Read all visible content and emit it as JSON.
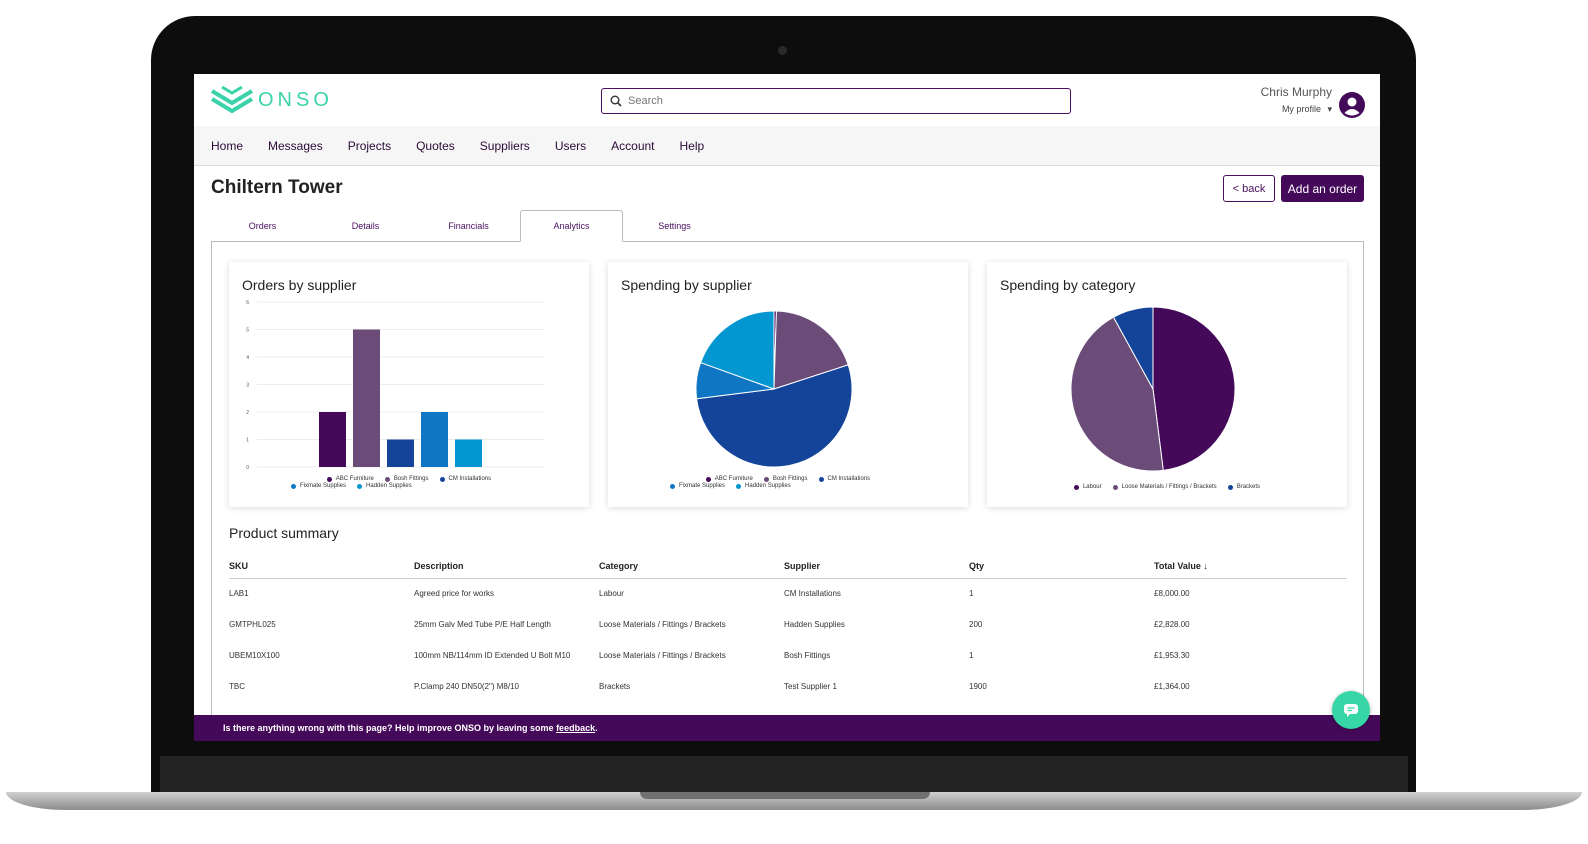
{
  "app": {
    "logo_text": "ONSO",
    "brand_color": "#3ad3a9",
    "primary_color": "#45095a"
  },
  "search": {
    "placeholder": "Search"
  },
  "user": {
    "name": "Chris Murphy",
    "profile_label": "My profile"
  },
  "nav": {
    "items": [
      "Home",
      "Messages",
      "Projects",
      "Quotes",
      "Suppliers",
      "Users",
      "Account",
      "Help"
    ]
  },
  "page": {
    "title": "Chiltern Tower",
    "back_label": "< back",
    "add_label": "Add an order"
  },
  "tabs": {
    "items": [
      "Orders",
      "Details",
      "Financials",
      "Analytics",
      "Settings"
    ],
    "active": "Analytics"
  },
  "chart_data": [
    {
      "type": "bar",
      "title": "Orders by supplier",
      "yticks": [
        "0",
        "1",
        "2",
        "3",
        "4",
        "5",
        "6"
      ],
      "ylim": [
        0,
        6
      ],
      "grid": true,
      "legend": "bottom",
      "series": [
        {
          "name": "ABC Furniture",
          "value": 2,
          "color": "#45095a"
        },
        {
          "name": "Bosh Fittings",
          "value": 5,
          "color": "#6b4c79"
        },
        {
          "name": "CM Installations",
          "value": 1,
          "color": "#13449a"
        },
        {
          "name": "Fixmate Supplies",
          "value": 2,
          "color": "#0f76c4"
        },
        {
          "name": "Hadden Supplies",
          "value": 1,
          "color": "#0496d0"
        }
      ]
    },
    {
      "type": "pie",
      "title": "Spending by supplier",
      "legend": "bottom",
      "slices": [
        {
          "name": "ABC Furniture",
          "value": 0.5,
          "color": "#45095a"
        },
        {
          "name": "Bosh Fittings",
          "value": 19.5,
          "color": "#6b4c79"
        },
        {
          "name": "CM Installations",
          "value": 53,
          "color": "#13449a"
        },
        {
          "name": "Fixmate Supplies",
          "value": 7.5,
          "color": "#0f76c4"
        },
        {
          "name": "Hadden Supplies",
          "value": 19.5,
          "color": "#0496d0"
        }
      ]
    },
    {
      "type": "pie",
      "title": "Spending by category",
      "legend": "bottom",
      "slices": [
        {
          "name": "Labour",
          "value": 48,
          "color": "#45095a"
        },
        {
          "name": "Loose Materials / Fittings / Brackets",
          "value": 44,
          "color": "#6b4c79"
        },
        {
          "name": "Brackets",
          "value": 8,
          "color": "#13449a"
        }
      ]
    }
  ],
  "summary": {
    "title": "Product summary",
    "headers": [
      "SKU",
      "Description",
      "Category",
      "Supplier",
      "Qty",
      "Total Value ↓"
    ],
    "rows": [
      [
        "LAB1",
        "Agreed price for works",
        "Labour",
        "CM Installations",
        "1",
        "£8,000.00"
      ],
      [
        "GMTPHL025",
        "25mm Galv Med Tube P/E Half Length",
        "Loose Materials / Fittings / Brackets",
        "Hadden Supplies",
        "200",
        "£2,828.00"
      ],
      [
        "UBEM10X100",
        "100mm NB/114mm ID Extended U Bolt M10",
        "Loose Materials / Fittings / Brackets",
        "Bosh Fittings",
        "1",
        "£1,953.30"
      ],
      [
        "TBC",
        "P.Clamp 240 DN50(2\") M8/10",
        "Brackets",
        "Test Supplier 1",
        "1900",
        "£1,364.00"
      ]
    ]
  },
  "feedback": {
    "text": "Is there anything wrong with this page? Help improve ONSO by leaving some ",
    "link": "feedback",
    "end": "."
  }
}
